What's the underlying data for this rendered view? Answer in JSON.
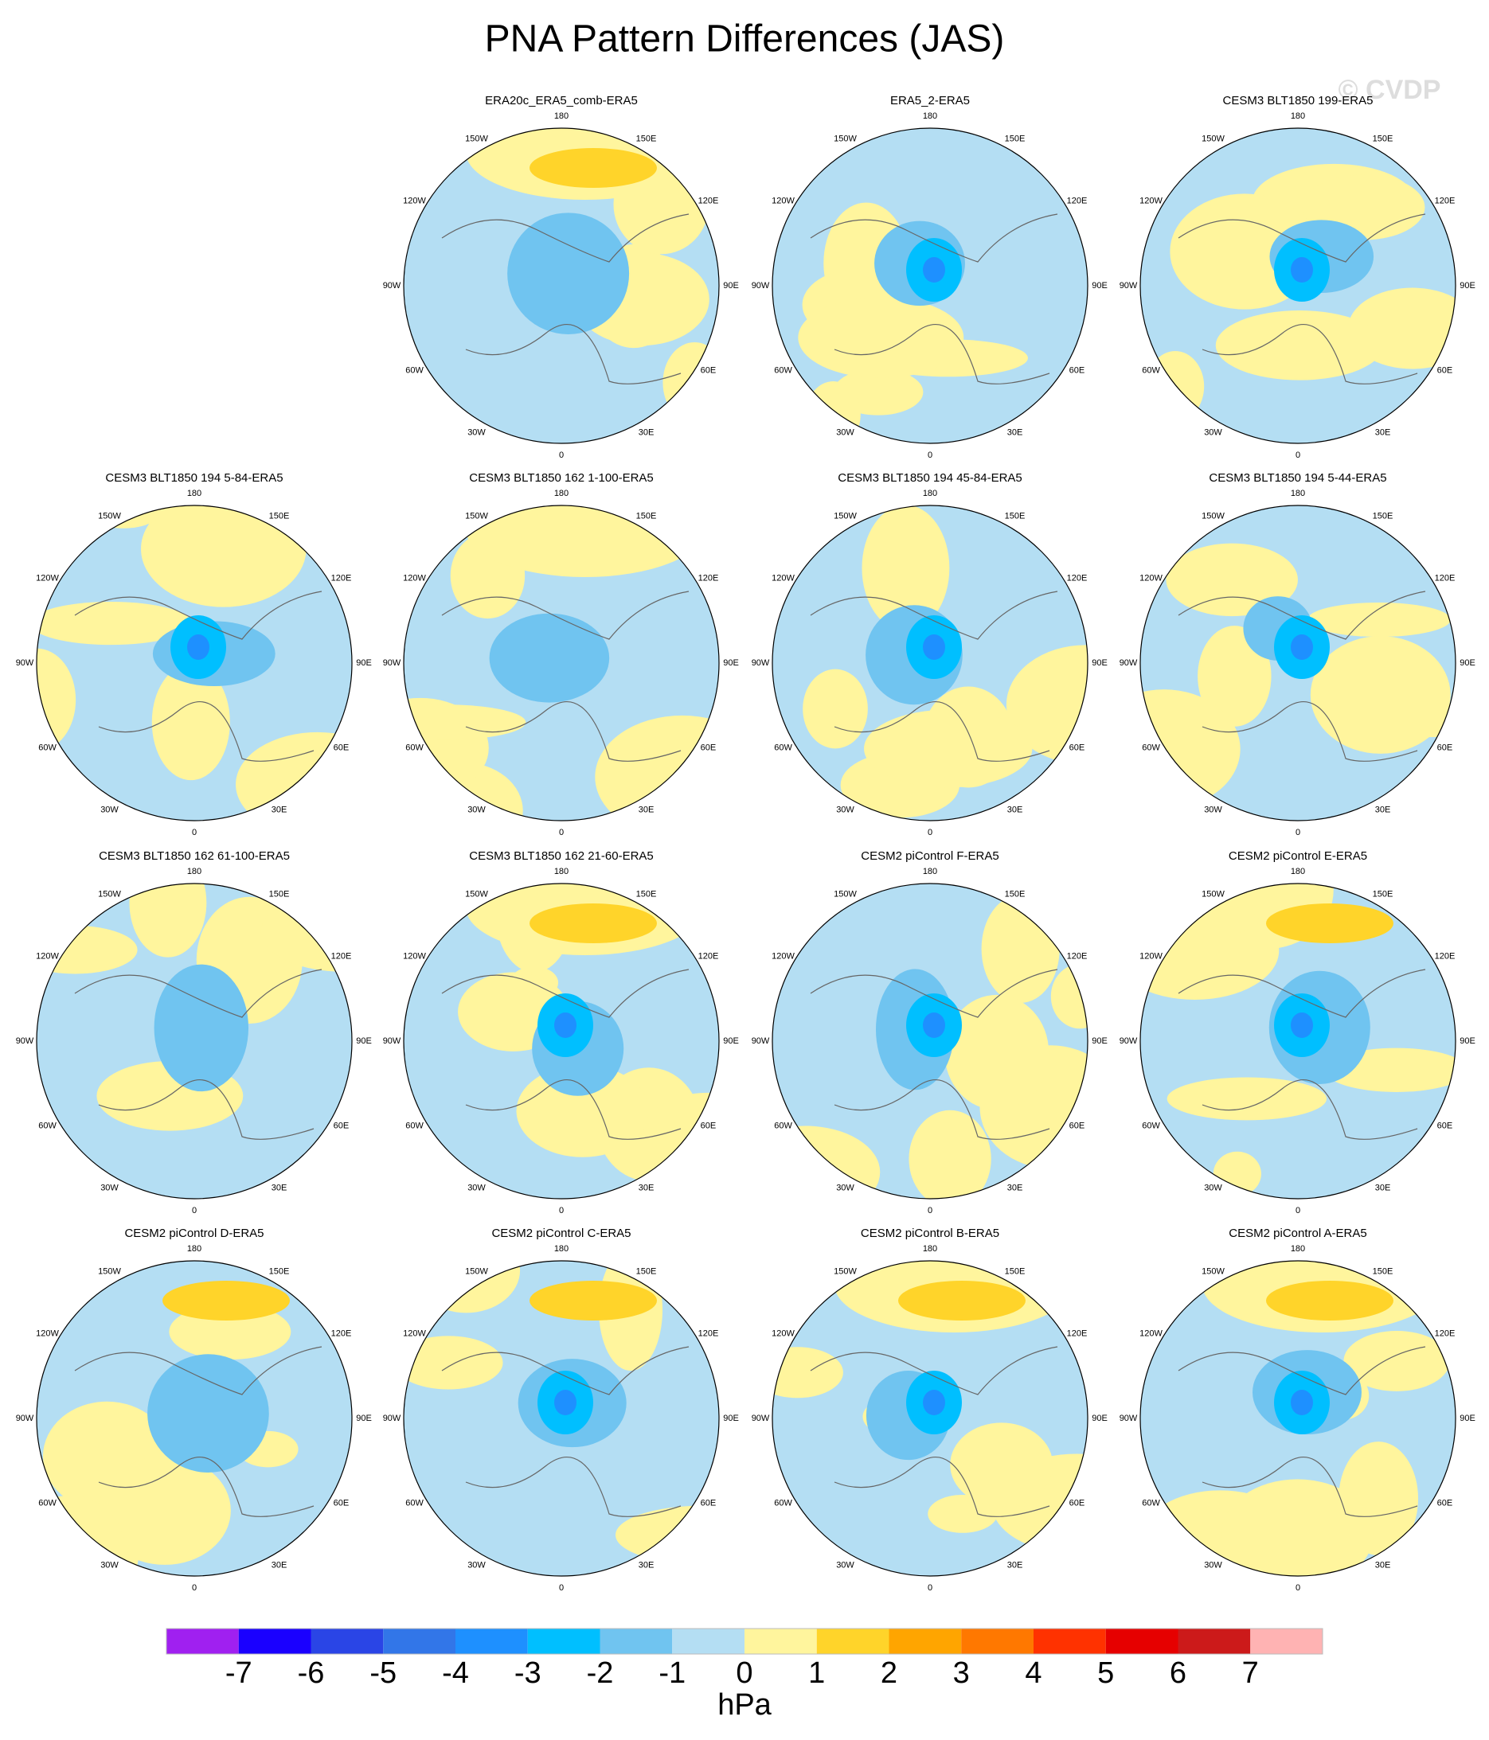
{
  "title": "PNA Pattern Differences (JAS)",
  "watermark": "© CVDP",
  "panels": [
    {
      "title": "ERA20c_ERA5_comb-ERA5"
    },
    {
      "title": "ERA5_2-ERA5"
    },
    {
      "title": "CESM3 BLT1850 199-ERA5"
    },
    {
      "title": "CESM3 BLT1850 194 5-84-ERA5"
    },
    {
      "title": "CESM3 BLT1850 162 1-100-ERA5"
    },
    {
      "title": "CESM3 BLT1850 194 45-84-ERA5"
    },
    {
      "title": "CESM3 BLT1850 194 5-44-ERA5"
    },
    {
      "title": "CESM3 BLT1850 162 61-100-ERA5"
    },
    {
      "title": "CESM3 BLT1850 162 21-60-ERA5"
    },
    {
      "title": "CESM2 piControl F-ERA5"
    },
    {
      "title": "CESM2 piControl E-ERA5"
    },
    {
      "title": "CESM2 piControl D-ERA5"
    },
    {
      "title": "CESM2 piControl C-ERA5"
    },
    {
      "title": "CESM2 piControl B-ERA5"
    },
    {
      "title": "CESM2 piControl A-ERA5"
    }
  ],
  "lon_labels": [
    "0",
    "30E",
    "60E",
    "90E",
    "120E",
    "150E",
    "180",
    "150W",
    "120W",
    "90W",
    "60W",
    "30W"
  ],
  "colorbar": {
    "colors": [
      "#a020f0",
      "#1a00ff",
      "#2a45e6",
      "#3276e8",
      "#1e90ff",
      "#00bfff",
      "#70c4f0",
      "#b4def3",
      "#fff59d",
      "#ffd42a",
      "#ffa500",
      "#ff7800",
      "#ff3200",
      "#e60000",
      "#cc1a1a",
      "#ffb3b3"
    ],
    "ticks": [
      -7,
      -6,
      -5,
      -4,
      -3,
      -2,
      -1,
      0,
      1,
      2,
      3,
      4,
      5,
      6,
      7
    ],
    "unit": "hPa"
  }
}
